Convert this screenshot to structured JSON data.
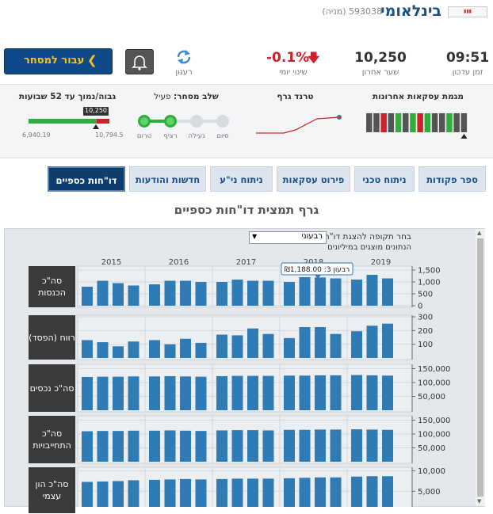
{
  "header": {
    "brand": "בינלאומי",
    "security": "593038 (מניה)"
  },
  "quote": {
    "time": "09:51",
    "time_label": "זמן עדכון",
    "last": "10,250",
    "last_label": "שער אחרון",
    "change": "-0.1%",
    "change_label": "שינוי יומי",
    "refresh": "רענון",
    "trade_button": "עבור למסחר"
  },
  "summary": {
    "trades_title": "מגמת עסקאות אחרונות",
    "trend_title": "טרנד גרף",
    "phase_title": "שלב מסחר:",
    "phase_value": "פעיל",
    "phases": [
      "טרום",
      "רציף",
      "נעילה",
      "סיום"
    ],
    "range_title": "גבוה/נמוך עד 52 שבועות",
    "range_current": "10,250",
    "range_low": "6,940.19",
    "range_high": "10,794.5"
  },
  "tabs": [
    "ספר פקודות",
    "ניתוח טכני",
    "פירוט עסקאות",
    "ניתוח ני\"ע",
    "חדשות והודעות",
    "דו\"חות כספיים"
  ],
  "reports": {
    "title": "גרף תמצית דו\"חות כספיים",
    "period_label": "בחר תקופה להצגת דו\"ח:",
    "period": "רבעוני",
    "units_note": "הנתונים מוצגים במיליונים",
    "tooltip": "רבעון 3: ₪1,188.00",
    "years": [
      "2015",
      "2016",
      "2017",
      "2018",
      "2019"
    ]
  },
  "chart_data": [
    {
      "type": "bar",
      "title": "סה\"כ הכנסות",
      "color": "#2f7bb5",
      "categories": [
        null,
        null,
        null,
        null,
        null,
        null,
        null,
        null,
        null,
        null,
        null,
        null,
        null,
        null,
        null,
        null,
        null,
        null,
        null
      ],
      "values": [
        800,
        1050,
        950,
        850,
        900,
        1050,
        1050,
        1000,
        1000,
        1100,
        1050,
        1050,
        1000,
        1200,
        1188,
        1150,
        1100,
        1300,
        1150
      ],
      "ylim": [
        0,
        1600
      ],
      "yticks": [
        0,
        500,
        {
          "value": 1000,
          "label": "1,000"
        },
        {
          "value": 1500,
          "label": "1,500"
        }
      ],
      "grid": true
    },
    {
      "type": "bar",
      "title": "רווח (הפסד)",
      "color": "#2f7bb5",
      "categories": [
        null,
        null,
        null,
        null,
        null,
        null,
        null,
        null,
        null,
        null,
        null,
        null,
        null,
        null,
        null,
        null,
        null,
        null,
        null
      ],
      "values": [
        130,
        115,
        85,
        120,
        130,
        100,
        140,
        110,
        170,
        165,
        215,
        175,
        145,
        225,
        225,
        175,
        195,
        235,
        250
      ],
      "ylim": [
        0,
        300
      ],
      "yticks": [
        100,
        200,
        300
      ],
      "grid": true
    },
    {
      "type": "bar",
      "title": "סה\"כ נכסים",
      "color": "#2f7bb5",
      "categories": [
        null,
        null,
        null,
        null,
        null,
        null,
        null,
        null,
        null,
        null,
        null,
        null,
        null,
        null,
        null,
        null,
        null,
        null,
        null
      ],
      "values": [
        120000,
        121000,
        121000,
        122000,
        122000,
        123000,
        122000,
        121000,
        123000,
        124000,
        124000,
        124000,
        125000,
        125000,
        126000,
        126000,
        127000,
        126000,
        125000
      ],
      "ylim": [
        0,
        160000
      ],
      "yticks": [
        {
          "value": 50000,
          "label": "50,000"
        },
        {
          "value": 100000,
          "label": "100,000"
        },
        {
          "value": 150000,
          "label": "150,000"
        }
      ],
      "grid": true
    },
    {
      "type": "bar",
      "title": "סה\"כ התחייבויות",
      "color": "#2f7bb5",
      "categories": [
        null,
        null,
        null,
        null,
        null,
        null,
        null,
        null,
        null,
        null,
        null,
        null,
        null,
        null,
        null,
        null,
        null,
        null,
        null
      ],
      "values": [
        110000,
        111000,
        111000,
        112000,
        112000,
        113000,
        112000,
        111000,
        113000,
        114000,
        114000,
        113000,
        115000,
        115000,
        116000,
        116000,
        117000,
        116000,
        115000
      ],
      "ylim": [
        0,
        160000
      ],
      "yticks": [
        {
          "value": 50000,
          "label": "50,000"
        },
        {
          "value": 100000,
          "label": "100,000"
        },
        {
          "value": 150000,
          "label": "150,000"
        }
      ],
      "grid": true
    },
    {
      "type": "bar",
      "title": "סה\"כ הון עצמי",
      "color": "#2f7bb5",
      "categories": [
        null,
        null,
        null,
        null,
        null,
        null,
        null,
        null,
        null,
        null,
        null,
        null,
        null,
        null,
        null,
        null,
        null,
        null,
        null
      ],
      "values": [
        7300,
        7400,
        7500,
        7700,
        7800,
        7900,
        8000,
        7900,
        8000,
        8100,
        8100,
        8100,
        8200,
        8300,
        8400,
        8400,
        8600,
        8700,
        8700
      ],
      "ylim": [
        0,
        10500
      ],
      "yticks": [
        {
          "value": 5000,
          "label": "5,000"
        },
        {
          "value": 10000,
          "label": "10,000"
        }
      ],
      "grid": true
    }
  ]
}
